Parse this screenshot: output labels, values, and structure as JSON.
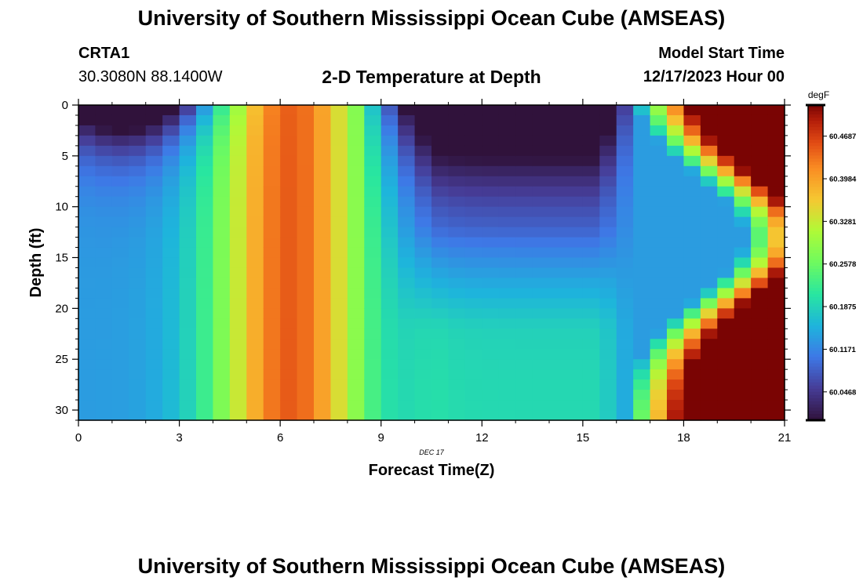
{
  "header": {
    "title": "University of Southern Mississippi Ocean Cube (AMSEAS)",
    "station": "CRTA1",
    "coords": "30.3080N  88.1400W",
    "plot_title": "2-D Temperature at Depth",
    "start_label": "Model Start Time",
    "start_value": "12/17/2023 Hour 00"
  },
  "footer": {
    "title": "University of Southern Mississippi Ocean Cube (AMSEAS)"
  },
  "chart_data": {
    "type": "heatmap",
    "title": "2-D Temperature at Depth",
    "xlabel": "Forecast Time(Z)",
    "ylabel": "Depth (ft)",
    "date_label": "DEC 17",
    "x_range": [
      0,
      21
    ],
    "y_range": [
      0,
      31
    ],
    "x_ticks": [
      0,
      3,
      6,
      9,
      12,
      15,
      18,
      21
    ],
    "y_ticks": [
      0,
      5,
      10,
      15,
      20,
      25,
      30
    ],
    "colorbar": {
      "unit": "degF",
      "range": [
        60.0,
        60.52
      ],
      "tick_values": [
        60.4687,
        60.3984,
        60.3281,
        60.2578,
        60.1875,
        60.1171,
        60.0468
      ],
      "tick_labels": [
        "60.4687",
        "60.3984",
        "60.3281",
        "60.2578",
        "60.1875",
        "60.1171",
        "60.0468"
      ]
    },
    "field_description": {
      "cols": 42,
      "rows": 31,
      "col_hours_step": 0.5,
      "row_depth_step_ft": 1
    }
  }
}
